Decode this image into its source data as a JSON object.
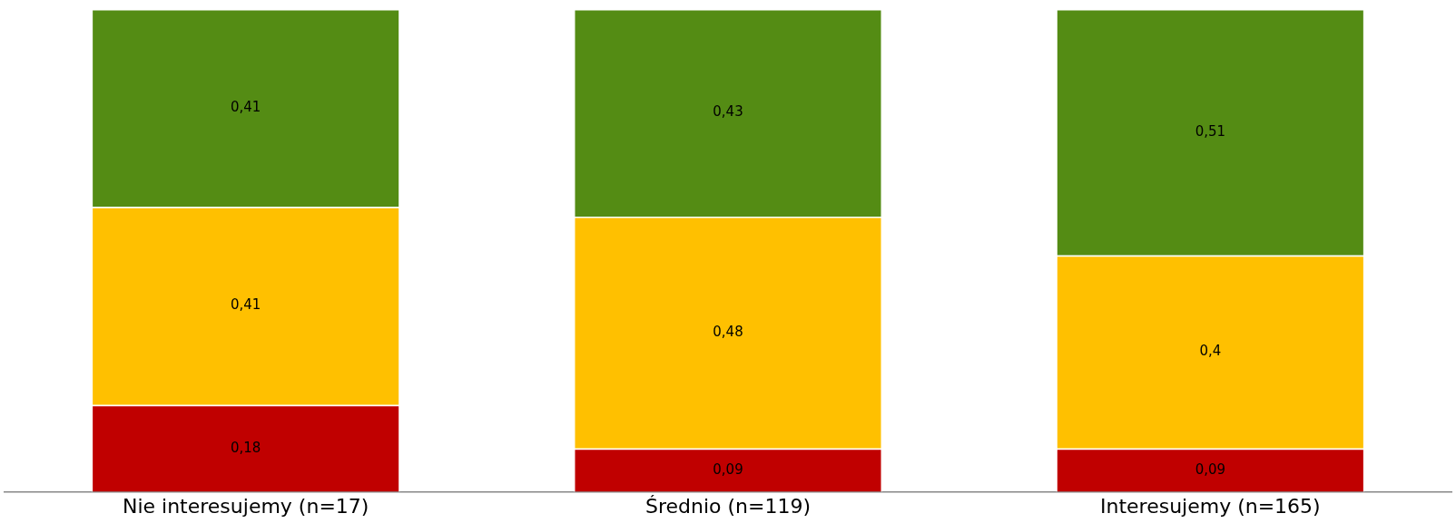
{
  "chart_data": {
    "type": "bar",
    "stacked": true,
    "categories": [
      "Nie interesujemy (n=17)",
      "Średnio (n=119)",
      "Interesujemy (n=165)"
    ],
    "series": [
      {
        "color": "#c00000",
        "values": [
          0.18,
          0.09,
          0.09
        ],
        "value_labels": [
          "0,18",
          "0,09",
          "0,09"
        ]
      },
      {
        "color": "#ffc000",
        "values": [
          0.41,
          0.48,
          0.4
        ],
        "value_labels": [
          "0,41",
          "0,48",
          "0,4"
        ]
      },
      {
        "color": "#548c14",
        "values": [
          0.41,
          0.43,
          0.51
        ],
        "value_labels": [
          "0,41",
          "0,43",
          "0,51"
        ]
      }
    ],
    "ylim": [
      0,
      1
    ],
    "tick_labels": "x",
    "grid": false,
    "legend": false
  }
}
